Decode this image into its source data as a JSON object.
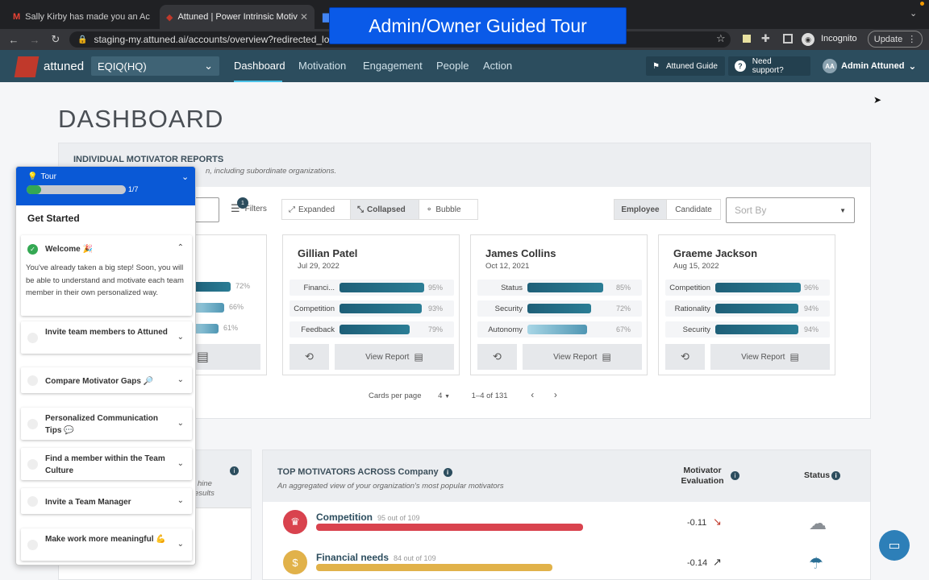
{
  "browser": {
    "tabs": [
      {
        "title": "Sally Kirby has made you an Ac",
        "icon": "gmail-icon"
      },
      {
        "title": "Attuned | Power Intrinsic Motiv",
        "icon": "attuned-icon"
      },
      {
        "title": "",
        "icon": "docs-icon"
      }
    ],
    "url": "staging-my.attuned.ai/accounts/overview?redirected_lo",
    "incognito_label": "Incognito",
    "update_label": "Update"
  },
  "banner": {
    "text": "Admin/Owner Guided Tour"
  },
  "app": {
    "logo_text": "attuned",
    "org_select": "EQIQ(HQ)",
    "nav": [
      "Dashboard",
      "Motivation",
      "Engagement",
      "People",
      "Action"
    ],
    "guide_label": "Attuned Guide",
    "support_label": "Need support?",
    "user_initials": "AA",
    "user_name": "Admin Attuned"
  },
  "dashboard": {
    "title": "DASHBOARD",
    "reports": {
      "title": "INDIVIDUAL MOTIVATOR REPORTS",
      "subtitle": "n, including subordinate organizations.",
      "filters_label": "Filters",
      "filters_count": "1",
      "views": [
        "Expanded",
        "Collapsed",
        "Bubble"
      ],
      "selected_view": "Collapsed",
      "types": [
        "Employee",
        "Candidate"
      ],
      "sort_placeholder": "Sort By",
      "view_report_label": "View Report",
      "partial_card": {
        "values": [
          72,
          66,
          61
        ],
        "pcts": [
          "72%",
          "66%",
          "61%"
        ]
      },
      "cards": [
        {
          "name": "Gillian Patel",
          "date": "Jul 29, 2022",
          "motivators": [
            {
              "label": "Financi...",
              "value": 95,
              "pct": "95%"
            },
            {
              "label": "Competition",
              "value": 93,
              "pct": "93%"
            },
            {
              "label": "Feedback",
              "value": 79,
              "pct": "79%"
            }
          ]
        },
        {
          "name": "James Collins",
          "date": "Oct 12, 2021",
          "motivators": [
            {
              "label": "Status",
              "value": 85,
              "pct": "85%"
            },
            {
              "label": "Security",
              "value": 72,
              "pct": "72%"
            },
            {
              "label": "Autonomy",
              "value": 67,
              "pct": "67%"
            }
          ]
        },
        {
          "name": "Graeme Jackson",
          "date": "Aug 15, 2022",
          "motivators": [
            {
              "label": "Competition",
              "value": 96,
              "pct": "96%"
            },
            {
              "label": "Rationality",
              "value": 94,
              "pct": "94%"
            },
            {
              "label": "Security",
              "value": 94,
              "pct": "94%"
            }
          ]
        }
      ],
      "pager": {
        "cards_per_page_label": "Cards per page",
        "cards_per_page": "4",
        "range": "1–4 of 131"
      }
    },
    "left_partial": {
      "line1": "hine",
      "line2": "esults"
    },
    "top_motivators": {
      "title": "TOP MOTIVATORS ACROSS Company",
      "subtitle": "An aggregated view of your organization's most popular motivators",
      "eval_header": "Motivator Evaluation",
      "status_header": "Status",
      "rows": [
        {
          "name": "Competition",
          "count": "95 out of 109",
          "value": 95,
          "total": 109,
          "evaluation": "-0.11",
          "color": "#d9434e",
          "status_icon": "cloud-icon"
        },
        {
          "name": "Financial needs",
          "count": "84 out of 109",
          "value": 84,
          "total": 109,
          "evaluation": "-0.14",
          "color": "#e1b24a",
          "status_icon": "umbrella-icon"
        }
      ]
    }
  },
  "tour": {
    "header": "Tour",
    "progress_text": "1/7",
    "progress": 0.14,
    "section_title": "Get Started",
    "welcome": {
      "title": "Welcome 🎉",
      "body": "You've already taken a big step! Soon, you will be able to understand and motivate each team member in their own personalized way."
    },
    "items": [
      "Invite team members to Attuned",
      "Compare Motivator Gaps 🔎",
      "Personalized Communication Tips 💬",
      "Find a member within the Team Culture",
      "Invite a Team Manager",
      "Make work more meaningful 💪"
    ]
  }
}
